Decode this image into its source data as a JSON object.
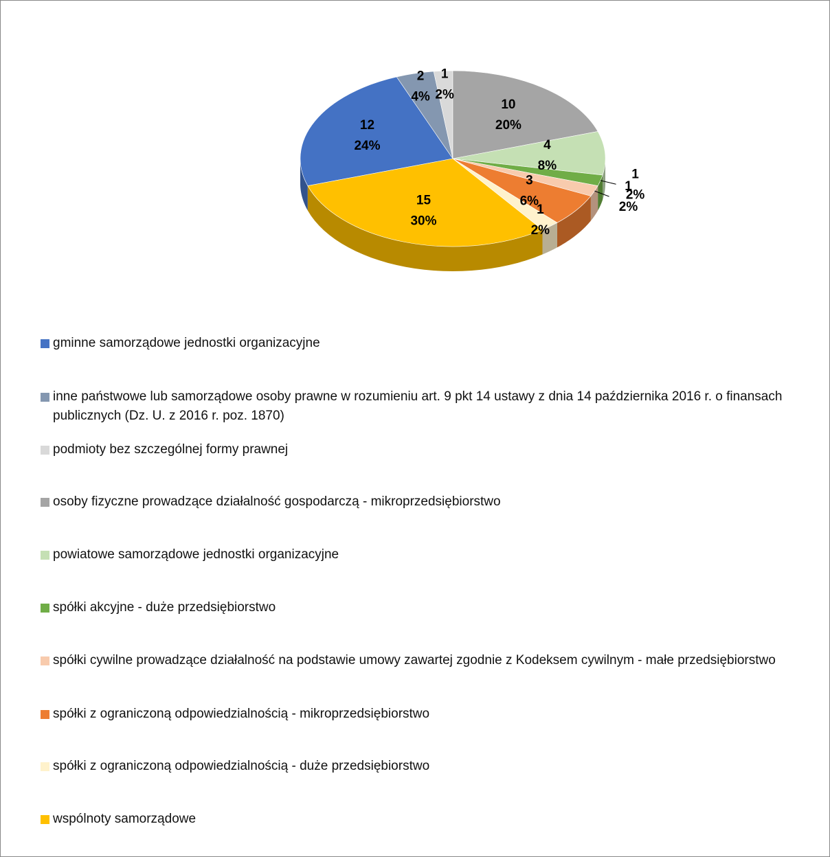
{
  "chart_data": {
    "type": "pie",
    "categories": [
      "gminne samorządowe jednostki organizacyjne",
      "inne państwowe lub samorządowe osoby prawne w rozumieniu art. 9 pkt 14 ustawy z dnia 14 października 2016 r. o finansach publicznych (Dz. U. z 2016 r. poz. 1870)",
      "podmioty bez szczególnej formy prawnej",
      "osoby fizyczne prowadzące działalność gospodarczą - mikroprzedsiębiorstwo",
      "powiatowe samorządowe jednostki organizacyjne",
      "spółki akcyjne - duże przedsiębiorstwo",
      "spółki cywilne prowadzące działalność na podstawie umowy zawartej zgodnie z Kodeksem cywilnym - małe przedsiębiorstwo",
      "spółki z ograniczoną odpowiedzialnością - mikroprzedsiębiorstwo",
      "spółki z ograniczoną odpowiedzialnością - duże przedsiębiorstwo",
      "wspólnoty samorządowe"
    ],
    "values": [
      12,
      2,
      1,
      10,
      4,
      1,
      1,
      3,
      1,
      15
    ],
    "percent_labels": [
      "24%",
      "4%",
      "2%",
      "20%",
      "8%",
      "2%",
      "2%",
      "6%",
      "2%",
      "30%"
    ],
    "colors": [
      "#4472c4",
      "#8497b0",
      "#d9d9d9",
      "#a5a5a5",
      "#c5e0b4",
      "#70ad47",
      "#f8cbad",
      "#ed7d31",
      "#fff2cc",
      "#ffc000"
    ],
    "legend": "bottom"
  }
}
